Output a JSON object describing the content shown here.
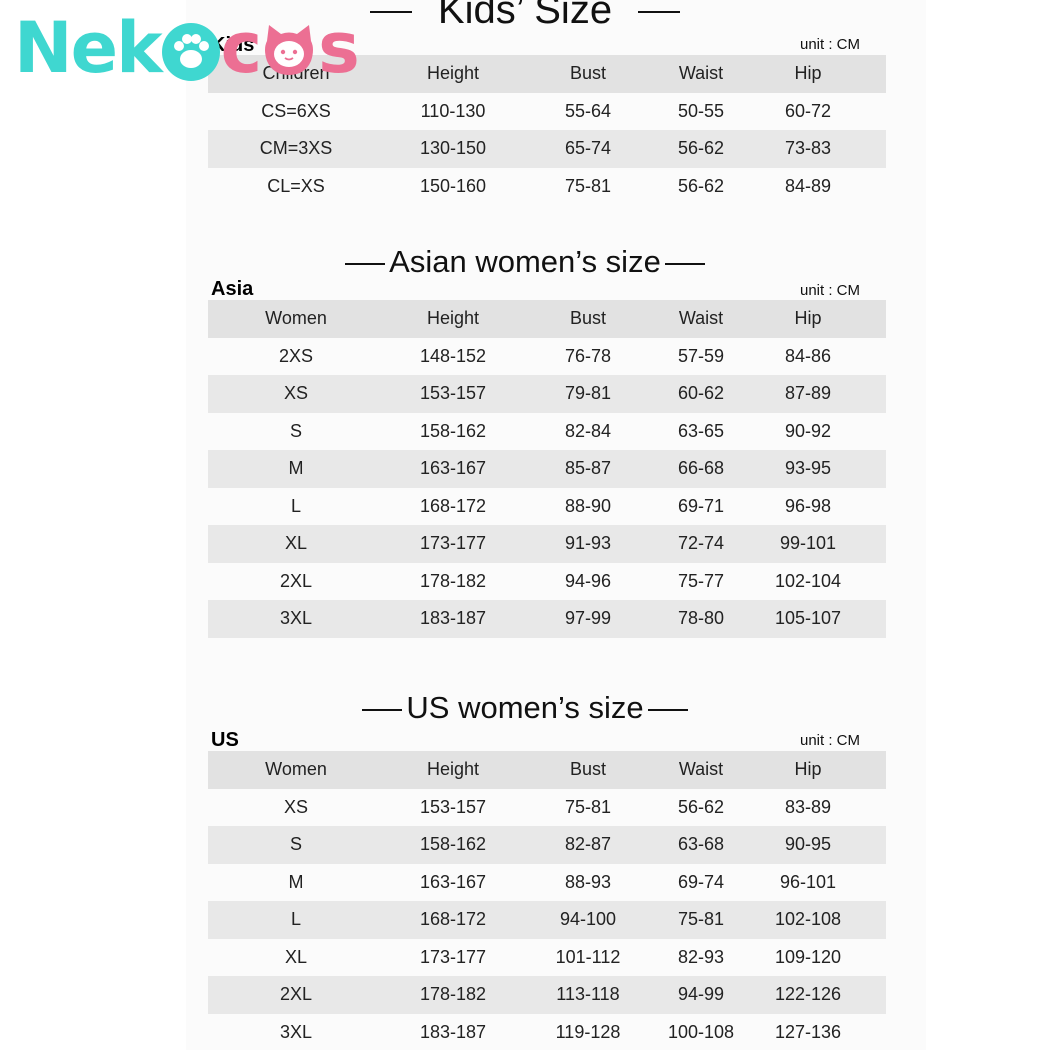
{
  "brand": {
    "part1": "Neko",
    "part2": "cos"
  },
  "colors": {
    "teal": "#3fd7d0",
    "pink": "#ec6f93",
    "row_shade": "#e8e8e8"
  },
  "kids": {
    "title": "Kids’ Size",
    "region": "Kids",
    "unit": "unit : CM",
    "headers": [
      "Children",
      "Height",
      "Bust",
      "Waist",
      "Hip"
    ],
    "rows": [
      [
        "CS=6XS",
        "110-130",
        "55-64",
        "50-55",
        "60-72"
      ],
      [
        "CM=3XS",
        "130-150",
        "65-74",
        "56-62",
        "73-83"
      ],
      [
        "CL=XS",
        "150-160",
        "75-81",
        "56-62",
        "84-89"
      ]
    ]
  },
  "asia": {
    "title": "Asian women’s size",
    "region": "Asia",
    "unit": "unit : CM",
    "headers": [
      "Women",
      "Height",
      "Bust",
      "Waist",
      "Hip"
    ],
    "rows": [
      [
        "2XS",
        "148-152",
        "76-78",
        "57-59",
        "84-86"
      ],
      [
        "XS",
        "153-157",
        "79-81",
        "60-62",
        "87-89"
      ],
      [
        "S",
        "158-162",
        "82-84",
        "63-65",
        "90-92"
      ],
      [
        "M",
        "163-167",
        "85-87",
        "66-68",
        "93-95"
      ],
      [
        "L",
        "168-172",
        "88-90",
        "69-71",
        "96-98"
      ],
      [
        "XL",
        "173-177",
        "91-93",
        "72-74",
        "99-101"
      ],
      [
        "2XL",
        "178-182",
        "94-96",
        "75-77",
        "102-104"
      ],
      [
        "3XL",
        "183-187",
        "97-99",
        "78-80",
        "105-107"
      ]
    ]
  },
  "us": {
    "title": "US women’s size",
    "region": "US",
    "unit": "unit : CM",
    "headers": [
      "Women",
      "Height",
      "Bust",
      "Waist",
      "Hip"
    ],
    "rows": [
      [
        "XS",
        "153-157",
        "75-81",
        "56-62",
        "83-89"
      ],
      [
        "S",
        "158-162",
        "82-87",
        "63-68",
        "90-95"
      ],
      [
        "M",
        "163-167",
        "88-93",
        "69-74",
        "96-101"
      ],
      [
        "L",
        "168-172",
        "94-100",
        "75-81",
        "102-108"
      ],
      [
        "XL",
        "173-177",
        "101-112",
        "82-93",
        "109-120"
      ],
      [
        "2XL",
        "178-182",
        "113-118",
        "94-99",
        "122-126"
      ],
      [
        "3XL",
        "183-187",
        "119-128",
        "100-108",
        "127-136"
      ]
    ]
  }
}
